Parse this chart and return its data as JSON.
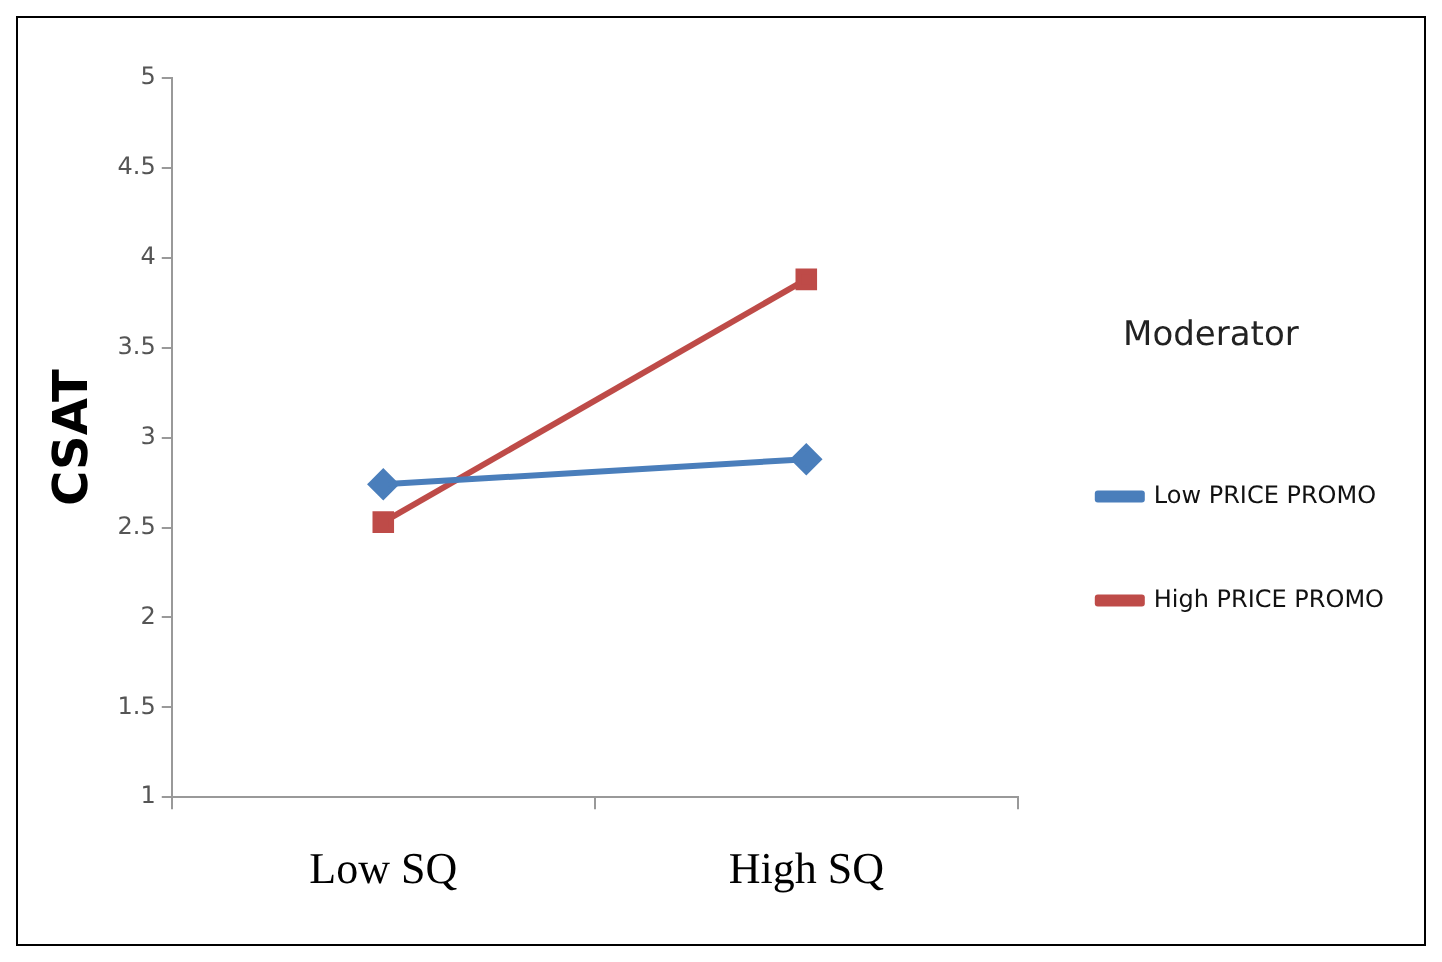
{
  "chart_data": {
    "type": "line",
    "ylabel": "CSAT",
    "legend_title": "Moderator",
    "categories": [
      "Low SQ",
      "High SQ"
    ],
    "series": [
      {
        "name": "Low PRICE PROMO",
        "color": "#4a7ebb",
        "values": [
          2.74,
          2.88
        ],
        "marker": "diamond"
      },
      {
        "name": "High PRICE PROMO",
        "color": "#be4b48",
        "values": [
          2.53,
          3.88
        ],
        "marker": "square"
      }
    ],
    "ylim": [
      1,
      5
    ],
    "yticks": [
      1,
      1.5,
      2,
      2.5,
      3,
      3.5,
      4,
      4.5,
      5
    ],
    "grid": false,
    "legend": "right",
    "line_style": "solid"
  }
}
